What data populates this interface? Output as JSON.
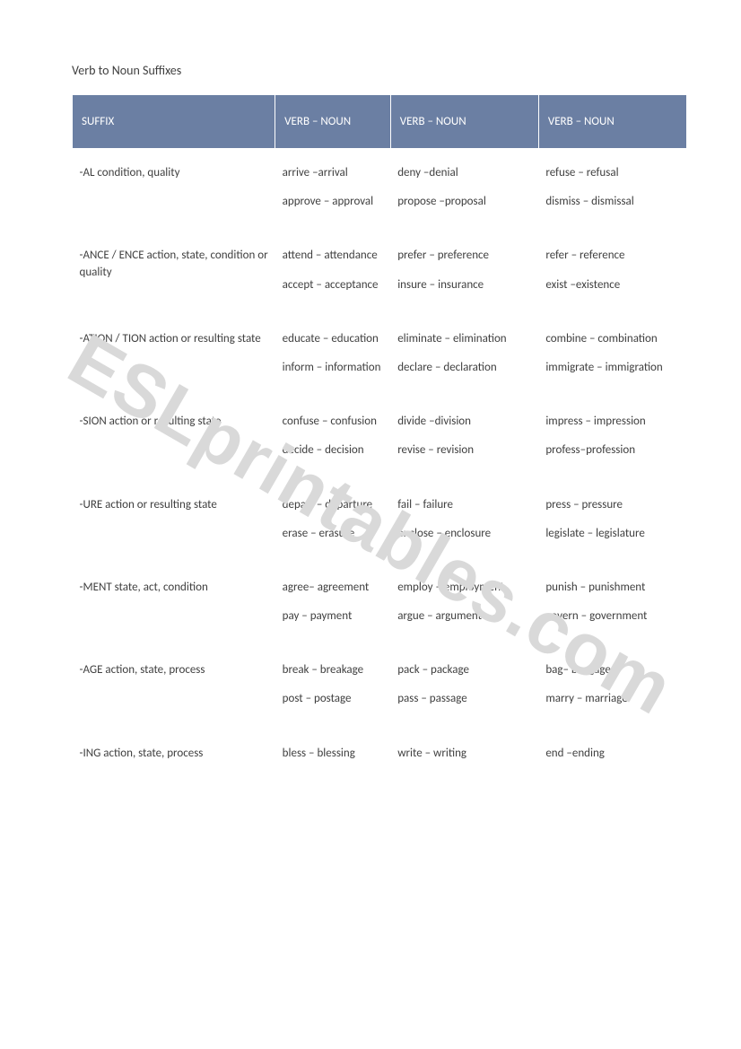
{
  "title": "Verb to Noun Suffixes",
  "watermark": "ESLprintables.com",
  "headers": {
    "col0": "SUFFIX",
    "col1": "VERB – NOUN",
    "col2": "VERB – NOUN",
    "col3": "VERB – NOUN"
  },
  "rows": [
    {
      "suffix": [
        "-AL condition, quality"
      ],
      "c1": [
        "arrive –arrival",
        "approve – approval"
      ],
      "c2": [
        "deny –denial",
        "propose –proposal"
      ],
      "c3": [
        "refuse – refusal",
        "dismiss – dismissal"
      ]
    },
    {
      "suffix": [
        "-ANCE / ENCE action, state, condition or quality"
      ],
      "c1": [
        "attend – attendance",
        "accept – acceptance"
      ],
      "c2": [
        "prefer – preference",
        "insure – insurance"
      ],
      "c3": [
        "refer – reference",
        "exist –existence"
      ]
    },
    {
      "suffix": [
        "-ATION / TION action or resulting state"
      ],
      "c1": [
        "educate – education",
        "inform – information"
      ],
      "c2": [
        "eliminate – elimination",
        "declare – declaration"
      ],
      "c3": [
        "combine – combination",
        "immigrate – immigration"
      ]
    },
    {
      "suffix": [
        "-SION action or resulting state"
      ],
      "c1": [
        "confuse – confusion",
        "decide – decision"
      ],
      "c2": [
        "divide –division",
        "revise – revision"
      ],
      "c3": [
        "impress – impression",
        "profess–profession"
      ]
    },
    {
      "suffix": [
        "-URE action or resulting state"
      ],
      "c1": [
        "depart – departure",
        "erase – erasure"
      ],
      "c2": [
        "fail – failure",
        "enclose – enclosure"
      ],
      "c3": [
        "press – pressure",
        "legislate – legislature"
      ]
    },
    {
      "suffix": [
        "-MENT state, act, condition"
      ],
      "c1": [
        "agree– agreement",
        "pay – payment"
      ],
      "c2": [
        "employ – employment",
        "argue – argument"
      ],
      "c3": [
        "punish – punishment",
        "govern – government"
      ]
    },
    {
      "suffix": [
        "-AGE action, state, process"
      ],
      "c1": [
        "break – breakage",
        "post – postage"
      ],
      "c2": [
        "pack – package",
        "pass – passage"
      ],
      "c3": [
        "bag– baggage",
        "marry – marriage"
      ]
    },
    {
      "suffix": [
        "-ING action, state, process"
      ],
      "c1": [
        "bless – blessing"
      ],
      "c2": [
        "write – writing"
      ],
      "c3": [
        "end –ending"
      ]
    }
  ]
}
